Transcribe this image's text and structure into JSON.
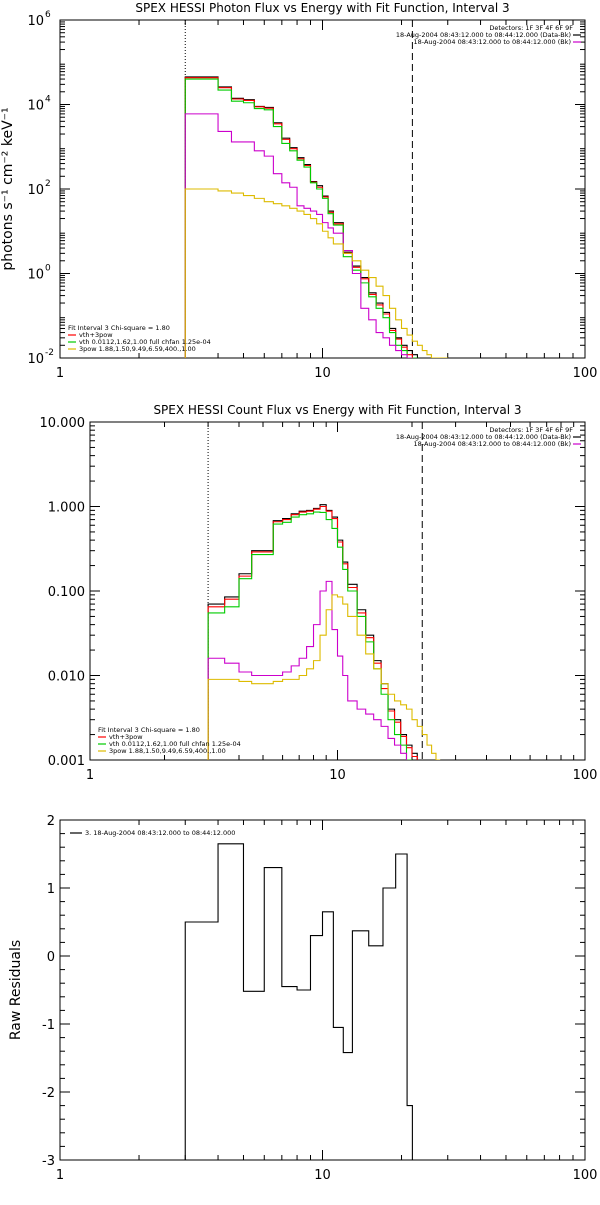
{
  "chart_data": [
    {
      "id": "photon",
      "type": "line",
      "step": true,
      "title": "SPEX HESSI Photon Flux vs Energy with Fit Function, Interval 3",
      "ylabel": "photons s⁻¹ cm⁻² keV⁻¹",
      "xlabel": "",
      "x_scale": "log",
      "y_scale": "log",
      "xlim": [
        1,
        100
      ],
      "ylim": [
        0.01,
        1000000
      ],
      "x_ticks": [
        {
          "v": 1,
          "label": "1"
        },
        {
          "v": 10,
          "label": "10"
        },
        {
          "v": 100,
          "label": "100"
        }
      ],
      "y_ticks": [
        {
          "v": 0.01,
          "label": "10",
          "exp": "-2"
        },
        {
          "v": 1,
          "label": "10",
          "exp": "0"
        },
        {
          "v": 100,
          "label": "10",
          "exp": "2"
        },
        {
          "v": 10000,
          "label": "10",
          "exp": "4"
        },
        {
          "v": 1000000,
          "label": "10",
          "exp": "6"
        }
      ],
      "detectors": "Detectors: 1F 3F 4F 6F 9F",
      "time_lines": [
        {
          "text": "18-Aug-2004 08:43:12.000 to 08:44:12.000 (Data-Bk)",
          "color": "#000000"
        },
        {
          "text": "18-Aug-2004 08:43:12.000 to 08:44:12.000 (Bk)",
          "color": "#cc00cc"
        }
      ],
      "fit_title": "Fit Interval 3   Chi-square = 1.80",
      "legend": [
        {
          "label": "vth+3pow",
          "color": "#ff0000"
        },
        {
          "label": "vth 0.0112,1.62,1.00  full chfan 1.25e-04",
          "color": "#00cc00"
        },
        {
          "label": "3pow 1.88,1.50,9.49,6.59,400.,1.00",
          "color": "#ddbb00"
        }
      ],
      "vlines": [
        {
          "x": 3.0,
          "style": "dotted"
        },
        {
          "x": 22.0,
          "style": "dashed"
        }
      ],
      "edges": [
        3.0,
        3.5,
        4.0,
        4.5,
        5.0,
        5.5,
        6.0,
        6.5,
        7.0,
        7.5,
        8.0,
        8.5,
        9.0,
        9.5,
        10.0,
        10.5,
        11.0,
        12.0,
        13.0,
        14.0,
        15.0,
        16.0,
        17.0,
        18.0,
        19.0,
        20.0,
        21.0,
        22.0,
        23.0,
        24.0,
        25.0,
        26.0,
        28.0,
        30.0
      ],
      "series": [
        {
          "name": "",
          "color": "#000000",
          "values": [
            45000,
            45000,
            26000,
            14000,
            13000,
            9000,
            8500,
            3700,
            1600,
            950,
            550,
            380,
            150,
            120,
            68,
            30,
            16,
            3.2,
            1.5,
            0.8,
            0.35,
            0.2,
            0.12,
            0.05,
            0.03,
            0.02,
            0.015,
            0.012,
            null,
            null,
            null,
            null,
            null
          ]
        },
        {
          "name": "",
          "color": "#ff0000",
          "values": [
            43000,
            43000,
            25000,
            13500,
            12500,
            8800,
            8200,
            3500,
            1500,
            900,
            520,
            360,
            145,
            110,
            65,
            28,
            15,
            3.0,
            1.4,
            0.75,
            0.32,
            0.18,
            0.11,
            0.045,
            0.028,
            0.018,
            0.012,
            0.01,
            null,
            null,
            null,
            null,
            null
          ]
        },
        {
          "name": "",
          "color": "#00cc00",
          "values": [
            40000,
            40000,
            22000,
            12000,
            11000,
            8000,
            7500,
            3000,
            1200,
            800,
            480,
            330,
            140,
            100,
            60,
            26,
            14,
            2.5,
            1.2,
            0.6,
            0.28,
            0.15,
            0.09,
            0.04,
            0.02,
            0.015,
            0.01,
            0.008,
            null,
            null,
            null,
            null,
            null
          ]
        },
        {
          "name": "",
          "color": "#cc00cc",
          "values": [
            6000,
            6000,
            2300,
            1300,
            1300,
            800,
            600,
            230,
            140,
            110,
            40,
            35,
            30,
            25,
            16,
            12,
            9,
            3.5,
            1.0,
            0.15,
            0.08,
            0.04,
            0.03,
            0.02,
            0.015,
            0.012,
            0.01,
            null,
            null,
            null,
            null,
            null,
            null
          ]
        },
        {
          "name": "",
          "color": "#ddbb00",
          "values": [
            100,
            100,
            90,
            80,
            70,
            60,
            50,
            45,
            40,
            35,
            30,
            25,
            20,
            15,
            10,
            7,
            5,
            3.0,
            2.0,
            1.2,
            0.8,
            0.5,
            0.3,
            0.15,
            0.08,
            0.05,
            0.035,
            0.025,
            0.02,
            0.015,
            0.012,
            0.01,
            0.009
          ]
        }
      ]
    },
    {
      "id": "count",
      "type": "line",
      "step": true,
      "title": "SPEX HESSI Count Flux vs Energy with Fit Function, Interval 3",
      "ylabel": "",
      "xlabel": "",
      "x_scale": "log",
      "y_scale": "log",
      "xlim": [
        1,
        100
      ],
      "ylim": [
        0.001,
        10
      ],
      "x_ticks": [
        {
          "v": 1,
          "label": "1"
        },
        {
          "v": 10,
          "label": "10"
        },
        {
          "v": 100,
          "label": "100"
        }
      ],
      "y_ticks": [
        {
          "v": 0.001,
          "label": "0.001"
        },
        {
          "v": 0.01,
          "label": "0.010"
        },
        {
          "v": 0.1,
          "label": "0.100"
        },
        {
          "v": 1,
          "label": "1.000"
        },
        {
          "v": 10,
          "label": "10.000"
        }
      ],
      "detectors": "Detectors: 1F 3F 4F 6F 9F",
      "time_lines": [
        {
          "text": "18-Aug-2004 08:43:12.000 to 08:44:12.000 (Data-Bk)",
          "color": "#000000"
        },
        {
          "text": "18-Aug-2004 08:43:12.000 to 08:44:12.000 (Bk)",
          "color": "#cc00cc"
        }
      ],
      "fit_title": "Fit Interval 3   Chi-square = 1.80",
      "legend": [
        {
          "label": "vth+3pow",
          "color": "#ff0000"
        },
        {
          "label": "vth 0.0112,1.62,1.00  full chfan 1.25e-04",
          "color": "#00cc00"
        },
        {
          "label": "3pow 1.88,1.50,9.49,6.59,400.,1.00",
          "color": "#ddbb00"
        }
      ],
      "vlines": [
        {
          "x": 3.0,
          "style": "dotted"
        },
        {
          "x": 22.0,
          "style": "dashed"
        }
      ],
      "edges": [
        3.0,
        3.5,
        4.0,
        4.5,
        5.0,
        5.5,
        6.0,
        6.5,
        7.0,
        7.5,
        8.0,
        8.5,
        9.0,
        9.5,
        10.0,
        10.5,
        11.0,
        12.0,
        13.0,
        14.0,
        15.0,
        16.0,
        17.0,
        18.0,
        19.0,
        20.0,
        21.0,
        22.0,
        23.0,
        24.0,
        25.0,
        26.0,
        28.0,
        30.0
      ],
      "series": [
        {
          "name": "",
          "color": "#000000",
          "values": [
            0.07,
            0.085,
            0.16,
            0.3,
            0.3,
            0.68,
            0.72,
            0.82,
            0.88,
            0.9,
            0.95,
            1.05,
            0.9,
            0.75,
            0.4,
            0.22,
            0.12,
            0.06,
            0.03,
            0.015,
            0.008,
            0.004,
            0.003,
            0.002,
            0.0015,
            0.0012,
            null,
            null,
            null,
            null,
            null,
            null,
            null
          ]
        },
        {
          "name": "",
          "color": "#ff0000",
          "values": [
            0.065,
            0.08,
            0.15,
            0.29,
            0.29,
            0.66,
            0.7,
            0.8,
            0.86,
            0.88,
            0.93,
            1.0,
            0.88,
            0.72,
            0.38,
            0.21,
            0.11,
            0.055,
            0.028,
            0.014,
            0.007,
            0.0038,
            0.0028,
            0.0019,
            0.0014,
            0.0011,
            null,
            null,
            null,
            null,
            null,
            null,
            null
          ]
        },
        {
          "name": "",
          "color": "#00cc00",
          "values": [
            0.055,
            0.065,
            0.14,
            0.27,
            0.27,
            0.62,
            0.65,
            0.75,
            0.8,
            0.82,
            0.86,
            0.85,
            0.7,
            0.55,
            0.33,
            0.18,
            0.1,
            0.05,
            0.025,
            0.012,
            0.006,
            0.003,
            0.002,
            0.0015,
            0.001,
            null,
            null,
            null,
            null,
            null,
            null,
            null,
            null
          ]
        },
        {
          "name": "",
          "color": "#cc00cc",
          "values": [
            0.016,
            0.014,
            0.011,
            0.01,
            0.01,
            0.01,
            0.011,
            0.013,
            0.016,
            0.022,
            0.04,
            0.1,
            0.13,
            0.035,
            0.017,
            0.01,
            0.005,
            0.004,
            0.0035,
            0.003,
            0.0025,
            0.0018,
            0.0015,
            0.0012,
            null,
            null,
            null,
            null,
            null,
            null,
            null,
            null,
            null
          ]
        },
        {
          "name": "",
          "color": "#ddbb00",
          "values": [
            0.009,
            0.009,
            0.0085,
            0.008,
            0.008,
            0.0085,
            0.009,
            0.009,
            0.01,
            0.012,
            0.015,
            0.03,
            0.06,
            0.09,
            0.085,
            0.07,
            0.05,
            0.03,
            0.018,
            0.012,
            0.008,
            0.006,
            0.005,
            0.0045,
            0.004,
            0.003,
            0.0025,
            0.002,
            0.0015,
            0.0012,
            0.001,
            null,
            null
          ]
        }
      ]
    },
    {
      "id": "residuals",
      "type": "line",
      "step": true,
      "title": "",
      "ylabel": "Raw Residuals",
      "xlabel": "",
      "x_scale": "log",
      "y_scale": "linear",
      "xlim": [
        1,
        100
      ],
      "ylim": [
        -3,
        2
      ],
      "x_ticks": [
        {
          "v": 1,
          "label": "1"
        },
        {
          "v": 10,
          "label": "10"
        },
        {
          "v": 100,
          "label": "100"
        }
      ],
      "y_ticks": [
        {
          "v": -3,
          "label": "-3"
        },
        {
          "v": -2,
          "label": "-2"
        },
        {
          "v": -1,
          "label": "-1"
        },
        {
          "v": 0,
          "label": "0"
        },
        {
          "v": 1,
          "label": "1"
        },
        {
          "v": 2,
          "label": "2"
        }
      ],
      "legend": [
        {
          "label": "3. 18-Aug-2004 08:43:12.000 to 08:44:12.000",
          "color": "#000000"
        }
      ],
      "edges": [
        3.0,
        4.0,
        5.0,
        5.5,
        6.0,
        7.0,
        7.5,
        8.0,
        9.0,
        9.5,
        10.0,
        11.0,
        12.0,
        13.0,
        14.0,
        15.0,
        16.0,
        17.0,
        18.0,
        19.0,
        20.0,
        21.0,
        22.0
      ],
      "series": [
        {
          "name": "",
          "color": "#000000",
          "values": [
            0.5,
            1.65,
            -0.52,
            -0.52,
            1.3,
            -0.45,
            -0.45,
            -0.5,
            0.3,
            0.3,
            0.65,
            -1.05,
            -1.42,
            0.37,
            0.37,
            0.15,
            0.15,
            1.0,
            1.0,
            1.5,
            1.5,
            -2.2
          ]
        }
      ]
    }
  ]
}
